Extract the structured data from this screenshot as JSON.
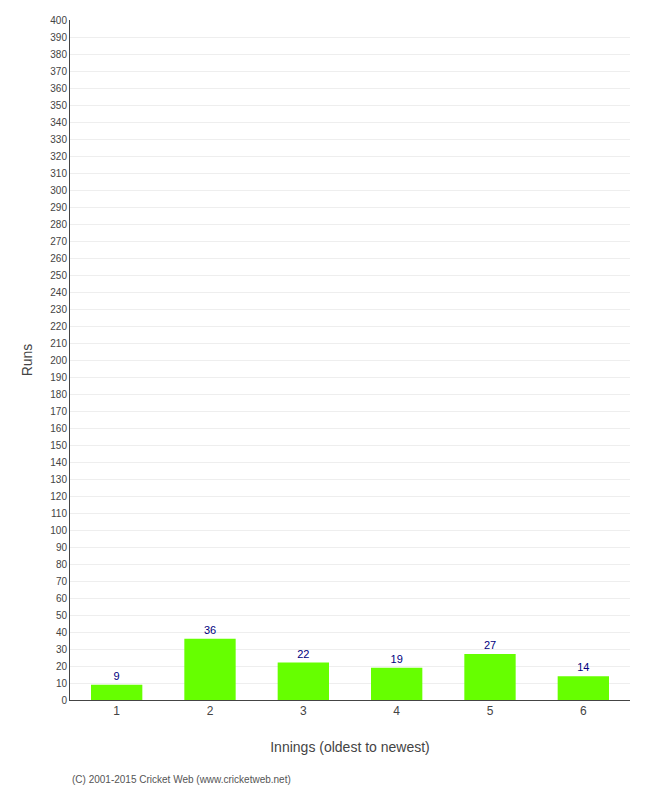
{
  "chart_data": {
    "type": "bar",
    "categories": [
      1,
      2,
      3,
      4,
      5,
      6
    ],
    "values": [
      9,
      36,
      22,
      19,
      27,
      14
    ],
    "color": "#66ff00",
    "xlabel": "Innings (oldest to newest)",
    "ylabel": "Runs",
    "ylim": [
      0,
      400
    ],
    "yticks": [
      0,
      10,
      20,
      30,
      40,
      50,
      60,
      70,
      80,
      90,
      100,
      110,
      120,
      130,
      140,
      150,
      160,
      170,
      180,
      190,
      200,
      210,
      220,
      230,
      240,
      250,
      260,
      270,
      280,
      290,
      300,
      310,
      320,
      330,
      340,
      350,
      360,
      370,
      380,
      390,
      400
    ],
    "grid": true,
    "data_labels": true,
    "annotations": [
      "(C) 2001-2015 Cricket Web (www.cricketweb.net)"
    ]
  }
}
